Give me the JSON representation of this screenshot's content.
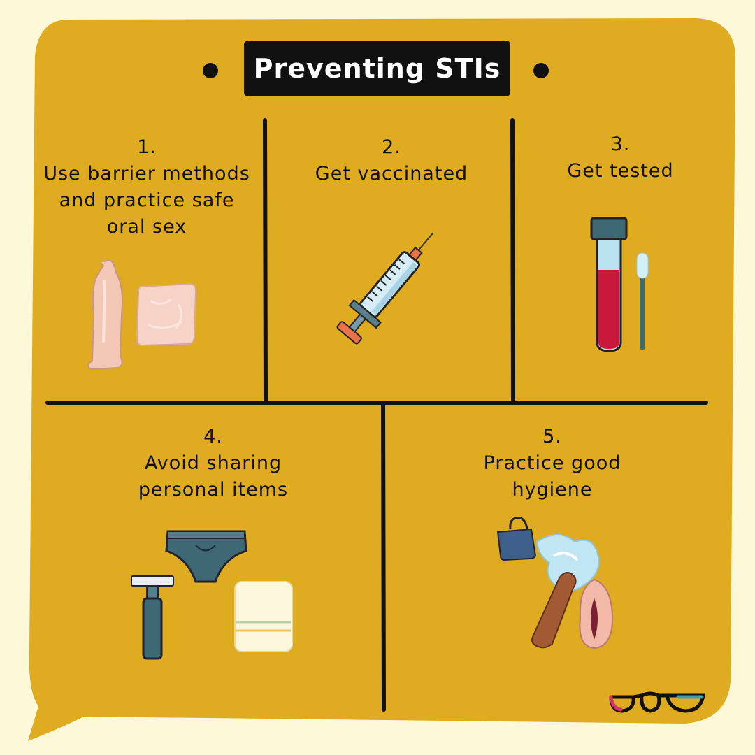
{
  "title": "Preventing STIs",
  "colors": {
    "background": "#fdf8d8",
    "panel": "#dfab20",
    "ink": "#111111",
    "title_text": "#ffffff"
  },
  "steps": [
    {
      "number": "1.",
      "text": "Use barrier methods\nand practice safe\noral sex",
      "icons": [
        "condom-icon",
        "dental-dam-icon"
      ]
    },
    {
      "number": "2.",
      "text": "Get vaccinated",
      "icons": [
        "syringe-icon"
      ]
    },
    {
      "number": "3.",
      "text": "Get tested",
      "icons": [
        "blood-test-tube-icon",
        "swab-icon"
      ]
    },
    {
      "number": "4.",
      "text": "Avoid sharing\npersonal items",
      "icons": [
        "underwear-icon",
        "razor-icon",
        "towel-icon"
      ]
    },
    {
      "number": "5.",
      "text": "Practice good\nhygiene",
      "icons": [
        "water-jug-icon",
        "water-splash-icon",
        "penis-icon",
        "vulva-icon"
      ]
    }
  ],
  "logo": {
    "name": "glasses-logo-icon"
  }
}
